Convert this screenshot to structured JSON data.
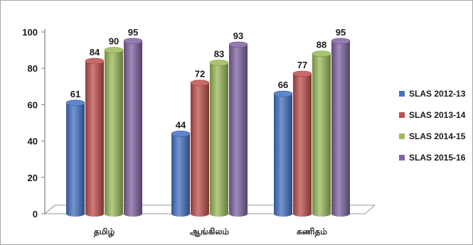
{
  "chart_data": {
    "type": "bar",
    "title": "",
    "xlabel": "",
    "ylabel": "",
    "ylim": [
      0,
      100
    ],
    "yticks": [
      0,
      20,
      40,
      60,
      80,
      100
    ],
    "grid": false,
    "style": "3d-cylinder",
    "legend_position": "right",
    "categories": [
      "தமிழ்",
      "ஆங்கிலம்",
      "கணிதம்"
    ],
    "series": [
      {
        "name": "SLAS 2012-13",
        "values": [
          61,
          44,
          66
        ],
        "color": "#4472c4"
      },
      {
        "name": "SLAS 2013-14",
        "values": [
          84,
          72,
          77
        ],
        "color": "#c0504d"
      },
      {
        "name": "SLAS 2014-15",
        "values": [
          90,
          83,
          88
        ],
        "color": "#9bbb59"
      },
      {
        "name": "SLAS 2015-16",
        "values": [
          95,
          93,
          95
        ],
        "color": "#8064a2"
      }
    ]
  }
}
